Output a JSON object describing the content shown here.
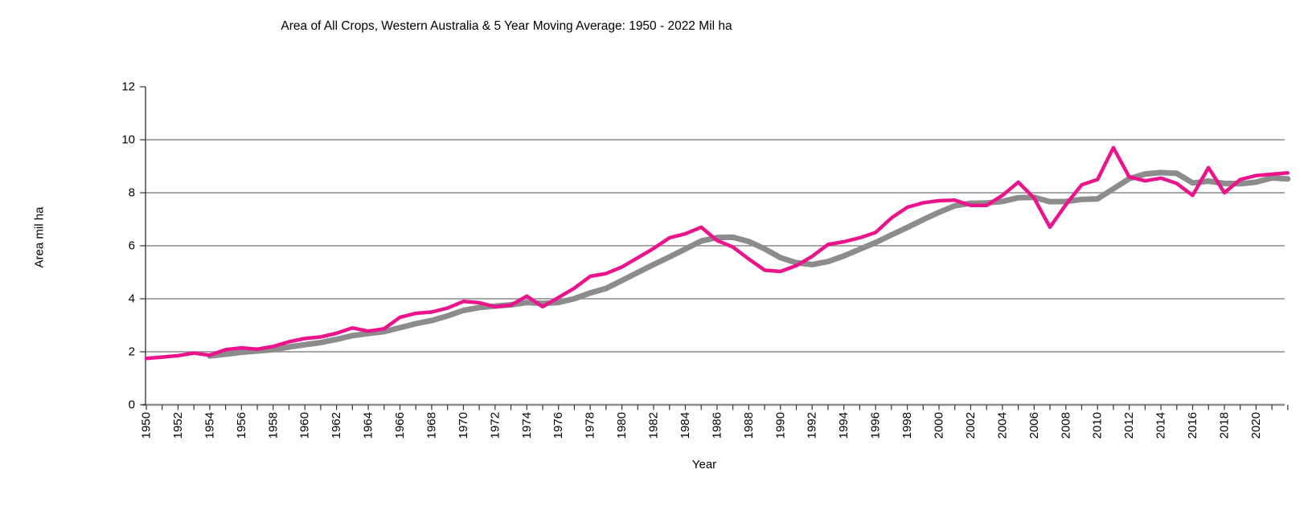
{
  "chart": {
    "title": "Area of All Crops, Western Australia & 5 Year Moving Average: 1950 - 2022 Mil ha",
    "x_axis_title": "Year",
    "y_axis_title": "Area mil  ha"
  },
  "chart_data": {
    "type": "line",
    "title": "Area of All Crops, Western Australia & 5 Year Moving Average: 1950 - 2022 Mil ha",
    "xlabel": "Year",
    "ylabel": "Area mil  ha",
    "x_start": 1950,
    "x_end": 2022,
    "x_step": 1,
    "x_tick_interval": 1,
    "x_tick_label_interval": 2,
    "x_last_labeled_tick": 2020,
    "ylim": [
      0,
      12
    ],
    "y_tick_interval": 2,
    "grid": "horizontal gray gridlines at 2, 4, 6, 8, 10 (none at 12)",
    "legend_position": "none",
    "colors": {
      "annual_line": "#EC148C",
      "moving_average_line": "#8C8C8C",
      "gridline": "#8C8C8C",
      "x_axis_line": "#8C8C8C",
      "y_axis_line": "#1a1a1a",
      "tick_mark": "#333333"
    },
    "series": [
      {
        "name": "Area of all crops (annual, Mil ha)",
        "color": "#EC148C",
        "values": [
          1.75,
          1.8,
          1.85,
          1.95,
          1.87,
          2.08,
          2.15,
          2.1,
          2.2,
          2.38,
          2.5,
          2.56,
          2.7,
          2.9,
          2.78,
          2.87,
          3.3,
          3.45,
          3.5,
          3.65,
          3.9,
          3.85,
          3.7,
          3.76,
          4.1,
          3.7,
          4.05,
          4.4,
          4.85,
          4.95,
          5.2,
          5.55,
          5.9,
          6.3,
          6.45,
          6.7,
          6.2,
          5.95,
          5.5,
          5.08,
          5.03,
          5.25,
          5.6,
          6.05,
          6.15,
          6.3,
          6.5,
          7.05,
          7.45,
          7.62,
          7.7,
          7.72,
          7.52,
          7.52,
          7.9,
          8.4,
          7.8,
          6.7,
          7.55,
          8.3,
          8.5,
          9.7,
          8.6,
          8.45,
          8.55,
          8.35,
          7.9,
          8.95,
          8.0,
          8.5,
          8.65,
          8.7,
          8.75
        ]
      },
      {
        "name": "5 year moving average",
        "color": "#8C8C8C",
        "derived_from": "Area of all crops (annual, Mil ha)",
        "window": 5,
        "alignment": "trailing",
        "plotted_from": 1954
      }
    ]
  }
}
